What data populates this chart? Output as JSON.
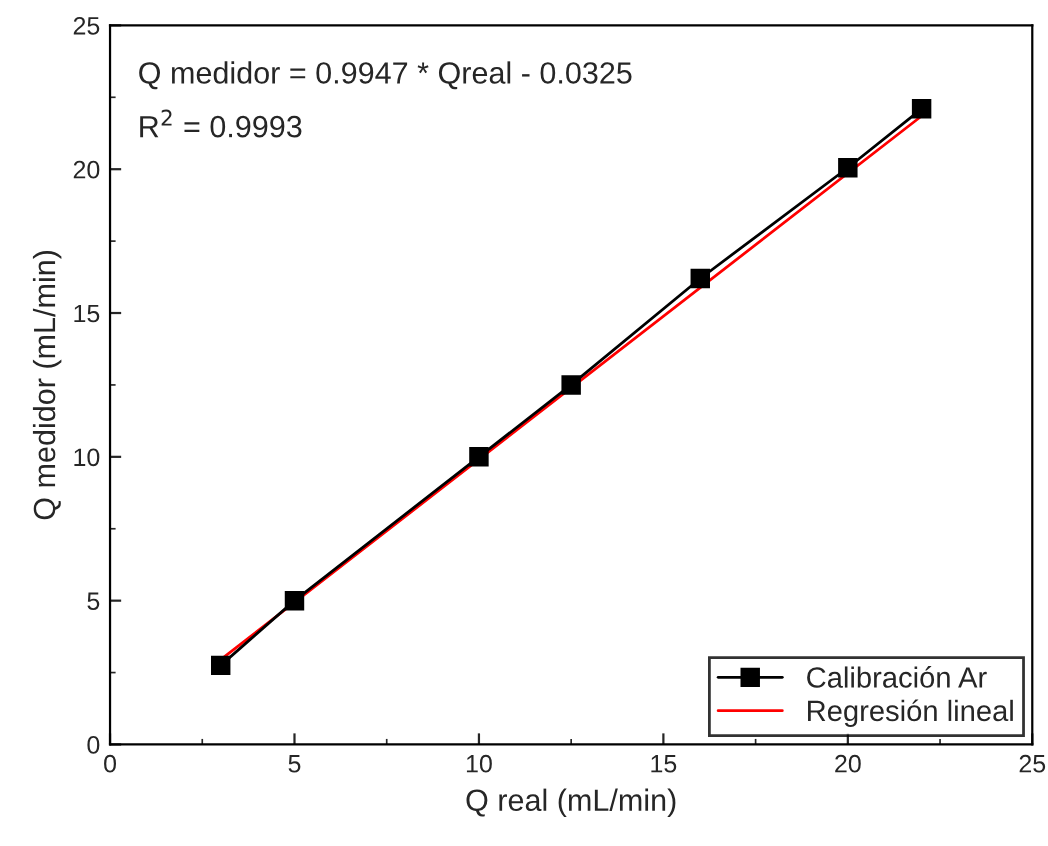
{
  "chart_data": {
    "type": "line",
    "xlabel": "Q real (mL/min)",
    "ylabel": "Q medidor (mL/min)",
    "annotations": [
      "Q medidor = 0.9947 * Qreal - 0.0325",
      "R$^{2}$ = 0.9993"
    ],
    "series": [
      {
        "name": "Calibración Ar",
        "color": "#000000",
        "marker": "square",
        "x": [
          3,
          5,
          10,
          12.5,
          16,
          20,
          22
        ],
        "values": [
          2.75,
          5.0,
          10.0,
          12.5,
          16.2,
          20.05,
          22.1
        ]
      },
      {
        "name": "Regresión lineal",
        "color": "#ff0000",
        "marker": "none",
        "x": [
          3,
          22
        ],
        "values": [
          2.95,
          21.85
        ]
      }
    ],
    "xlim": [
      0,
      25
    ],
    "xticks": [
      0,
      5,
      10,
      15,
      20,
      25
    ],
    "ylim": [
      0,
      25
    ],
    "yticks": [
      0,
      5,
      10,
      15,
      20,
      25
    ],
    "grid": false,
    "legend": "bottom right"
  }
}
